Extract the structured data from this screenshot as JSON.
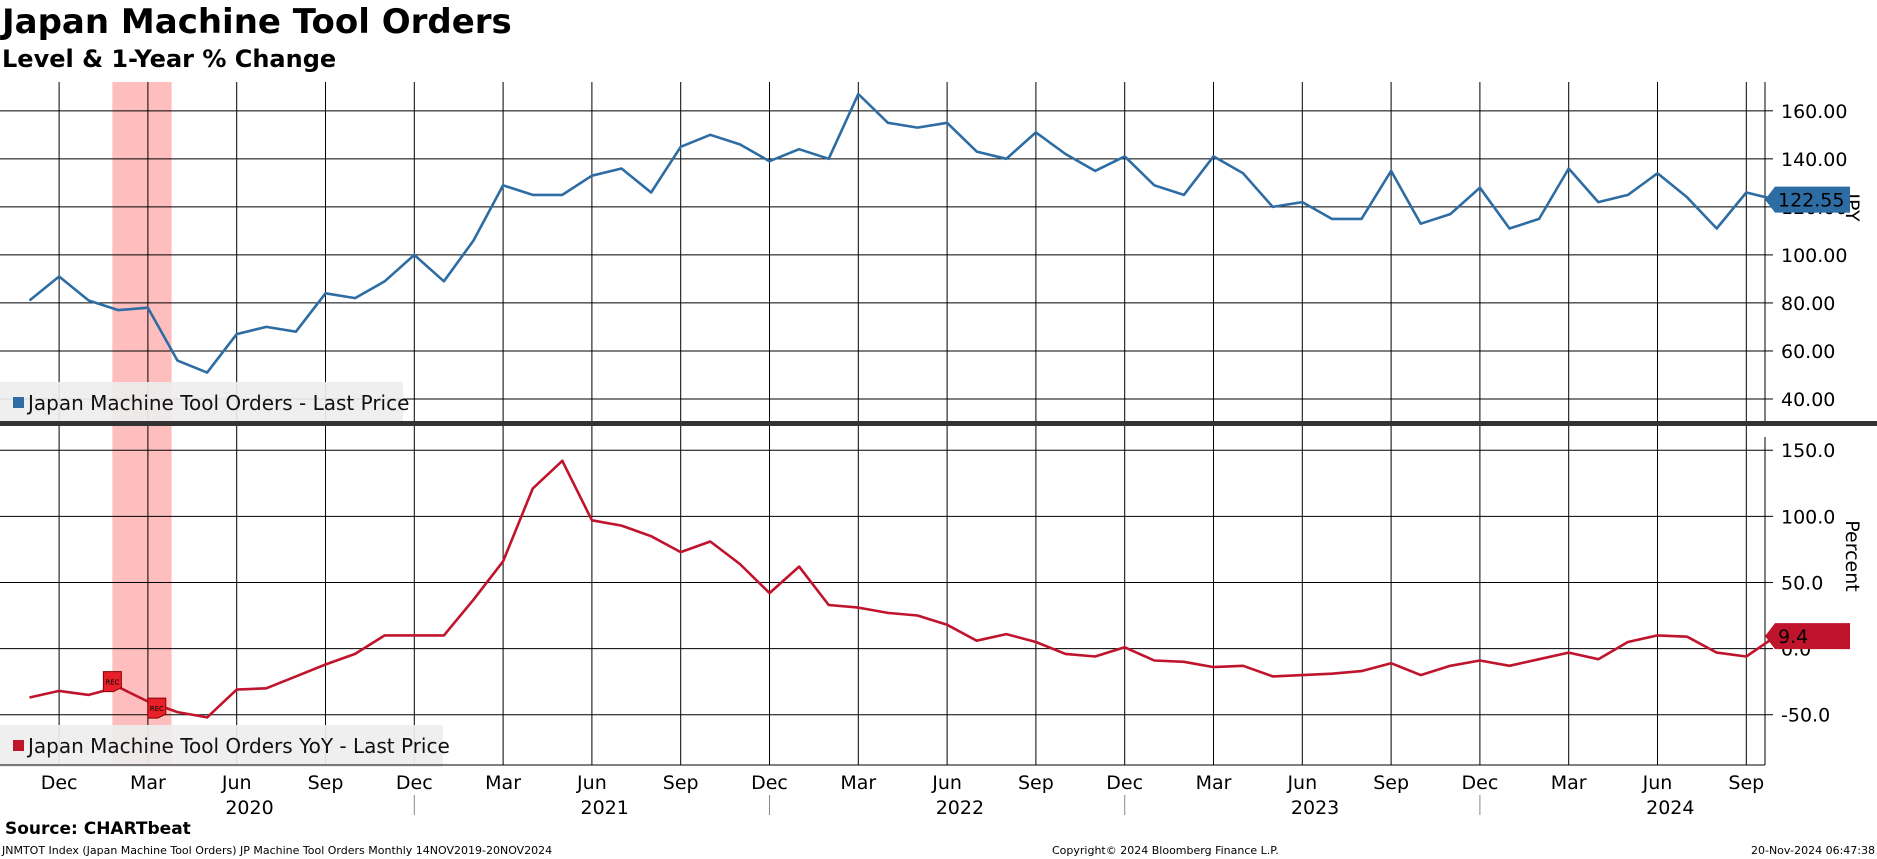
{
  "title": "Japan Machine Tool Orders",
  "subtitle": "Level & 1-Year % Change",
  "source": "Source: CHARTbeat",
  "footer": {
    "left": "JNMTOT Index (Japan Machine Tool Orders) JP Machine Tool Orders  Monthly 14NOV2019-20NOV2024",
    "center": "Copyright© 2024 Bloomberg Finance L.P.",
    "right": "20-Nov-2024 06:47:38"
  },
  "colors": {
    "level_line": "#2e6ca4",
    "yoy_line": "#c0142c",
    "recession_band": "#ffb3b3",
    "grid": "#000000"
  },
  "chart_data": [
    {
      "type": "line",
      "ylabel": "JPY",
      "ylim": [
        30,
        172
      ],
      "yticks": [
        "40.00",
        "60.00",
        "80.00",
        "100.00",
        "120.00",
        "140.00",
        "160.00"
      ],
      "last_value_label": "122.55",
      "legend": "Japan Machine Tool Orders - Last Price",
      "legend_position": "bottom-left",
      "x": [
        "2019-11",
        "2019-12",
        "2020-01",
        "2020-02",
        "2020-03",
        "2020-04",
        "2020-05",
        "2020-06",
        "2020-07",
        "2020-08",
        "2020-09",
        "2020-10",
        "2020-11",
        "2020-12",
        "2021-01",
        "2021-02",
        "2021-03",
        "2021-04",
        "2021-05",
        "2021-06",
        "2021-07",
        "2021-08",
        "2021-09",
        "2021-10",
        "2021-11",
        "2021-12",
        "2022-01",
        "2022-02",
        "2022-03",
        "2022-04",
        "2022-05",
        "2022-06",
        "2022-07",
        "2022-08",
        "2022-09",
        "2022-10",
        "2022-11",
        "2022-12",
        "2023-01",
        "2023-02",
        "2023-03",
        "2023-04",
        "2023-05",
        "2023-06",
        "2023-07",
        "2023-08",
        "2023-09",
        "2023-10",
        "2023-11",
        "2023-12",
        "2024-01",
        "2024-02",
        "2024-03",
        "2024-04",
        "2024-05",
        "2024-06",
        "2024-07",
        "2024-08",
        "2024-09",
        "2024-10"
      ],
      "series": [
        {
          "name": "Japan Machine Tool Orders - Last Price",
          "values": [
            81,
            91,
            81,
            77,
            78,
            56,
            51,
            67,
            70,
            68,
            84,
            82,
            89,
            100,
            89,
            106,
            129,
            125,
            125,
            133,
            136,
            126,
            145,
            150,
            146,
            139,
            144,
            140,
            167,
            155,
            153,
            155,
            143,
            140,
            151,
            142,
            135,
            141,
            129,
            125,
            141,
            134,
            120,
            122,
            115,
            115,
            135,
            113,
            117,
            128,
            111,
            115,
            136,
            122,
            125,
            134,
            124,
            111,
            126,
            123
          ]
        }
      ]
    },
    {
      "type": "line",
      "ylabel": "Percent",
      "ylim": [
        -88,
        160
      ],
      "yticks": [
        "-50.0",
        "0.0",
        "50.0",
        "100.0",
        "150.0"
      ],
      "last_value_label": "9.4",
      "legend": "Japan Machine Tool Orders YoY - Last Price",
      "legend_position": "bottom-left",
      "x": [
        "2019-11",
        "2019-12",
        "2020-01",
        "2020-02",
        "2020-03",
        "2020-04",
        "2020-05",
        "2020-06",
        "2020-07",
        "2020-08",
        "2020-09",
        "2020-10",
        "2020-11",
        "2020-12",
        "2021-01",
        "2021-02",
        "2021-03",
        "2021-04",
        "2021-05",
        "2021-06",
        "2021-07",
        "2021-08",
        "2021-09",
        "2021-10",
        "2021-11",
        "2021-12",
        "2022-01",
        "2022-02",
        "2022-03",
        "2022-04",
        "2022-05",
        "2022-06",
        "2022-07",
        "2022-08",
        "2022-09",
        "2022-10",
        "2022-11",
        "2022-12",
        "2023-01",
        "2023-02",
        "2023-03",
        "2023-04",
        "2023-05",
        "2023-06",
        "2023-07",
        "2023-08",
        "2023-09",
        "2023-10",
        "2023-11",
        "2023-12",
        "2024-01",
        "2024-02",
        "2024-03",
        "2024-04",
        "2024-05",
        "2024-06",
        "2024-07",
        "2024-08",
        "2024-09",
        "2024-10"
      ],
      "series": [
        {
          "name": "Japan Machine Tool Orders YoY - Last Price",
          "values": [
            -37,
            -32,
            -35,
            -29,
            -40,
            -48,
            -52,
            -31,
            -30,
            -21,
            -12,
            -4,
            10,
            10,
            10,
            37,
            66,
            121,
            142,
            97,
            93,
            85,
            73,
            81,
            64,
            42,
            62,
            33,
            31,
            27,
            25,
            18,
            6,
            11,
            5,
            -4,
            -6,
            1,
            -9,
            -10,
            -14,
            -13,
            -21,
            -20,
            -19,
            -17,
            -11,
            -20,
            -13,
            -9,
            -13,
            -8,
            -3,
            -8,
            5,
            10,
            9,
            -3,
            -6,
            9.4
          ]
        }
      ]
    }
  ],
  "x_axis": {
    "months": [
      {
        "label": "Dec",
        "i": 1
      },
      {
        "label": "Mar",
        "i": 4
      },
      {
        "label": "Jun",
        "i": 7
      },
      {
        "label": "Sep",
        "i": 10
      },
      {
        "label": "Dec",
        "i": 13
      },
      {
        "label": "Mar",
        "i": 16
      },
      {
        "label": "Jun",
        "i": 19
      },
      {
        "label": "Sep",
        "i": 22
      },
      {
        "label": "Dec",
        "i": 25
      },
      {
        "label": "Mar",
        "i": 28
      },
      {
        "label": "Jun",
        "i": 31
      },
      {
        "label": "Sep",
        "i": 34
      },
      {
        "label": "Dec",
        "i": 37
      },
      {
        "label": "Mar",
        "i": 40
      },
      {
        "label": "Jun",
        "i": 43
      },
      {
        "label": "Sep",
        "i": 46
      },
      {
        "label": "Dec",
        "i": 49
      },
      {
        "label": "Mar",
        "i": 52
      },
      {
        "label": "Jun",
        "i": 55
      },
      {
        "label": "Sep",
        "i": 58
      }
    ],
    "years": [
      {
        "label": "2020",
        "i": 7.5
      },
      {
        "label": "2021",
        "i": 19.5
      },
      {
        "label": "2022",
        "i": 31.5
      },
      {
        "label": "2023",
        "i": 43.5
      },
      {
        "label": "2024",
        "i": 55.5
      }
    ]
  },
  "recession": {
    "start": 2.8,
    "end": 4.8,
    "markers": [
      {
        "label": "REC",
        "i": 2.8,
        "value": -25
      },
      {
        "label": "REC",
        "i": 4.3,
        "value": -45
      }
    ]
  }
}
